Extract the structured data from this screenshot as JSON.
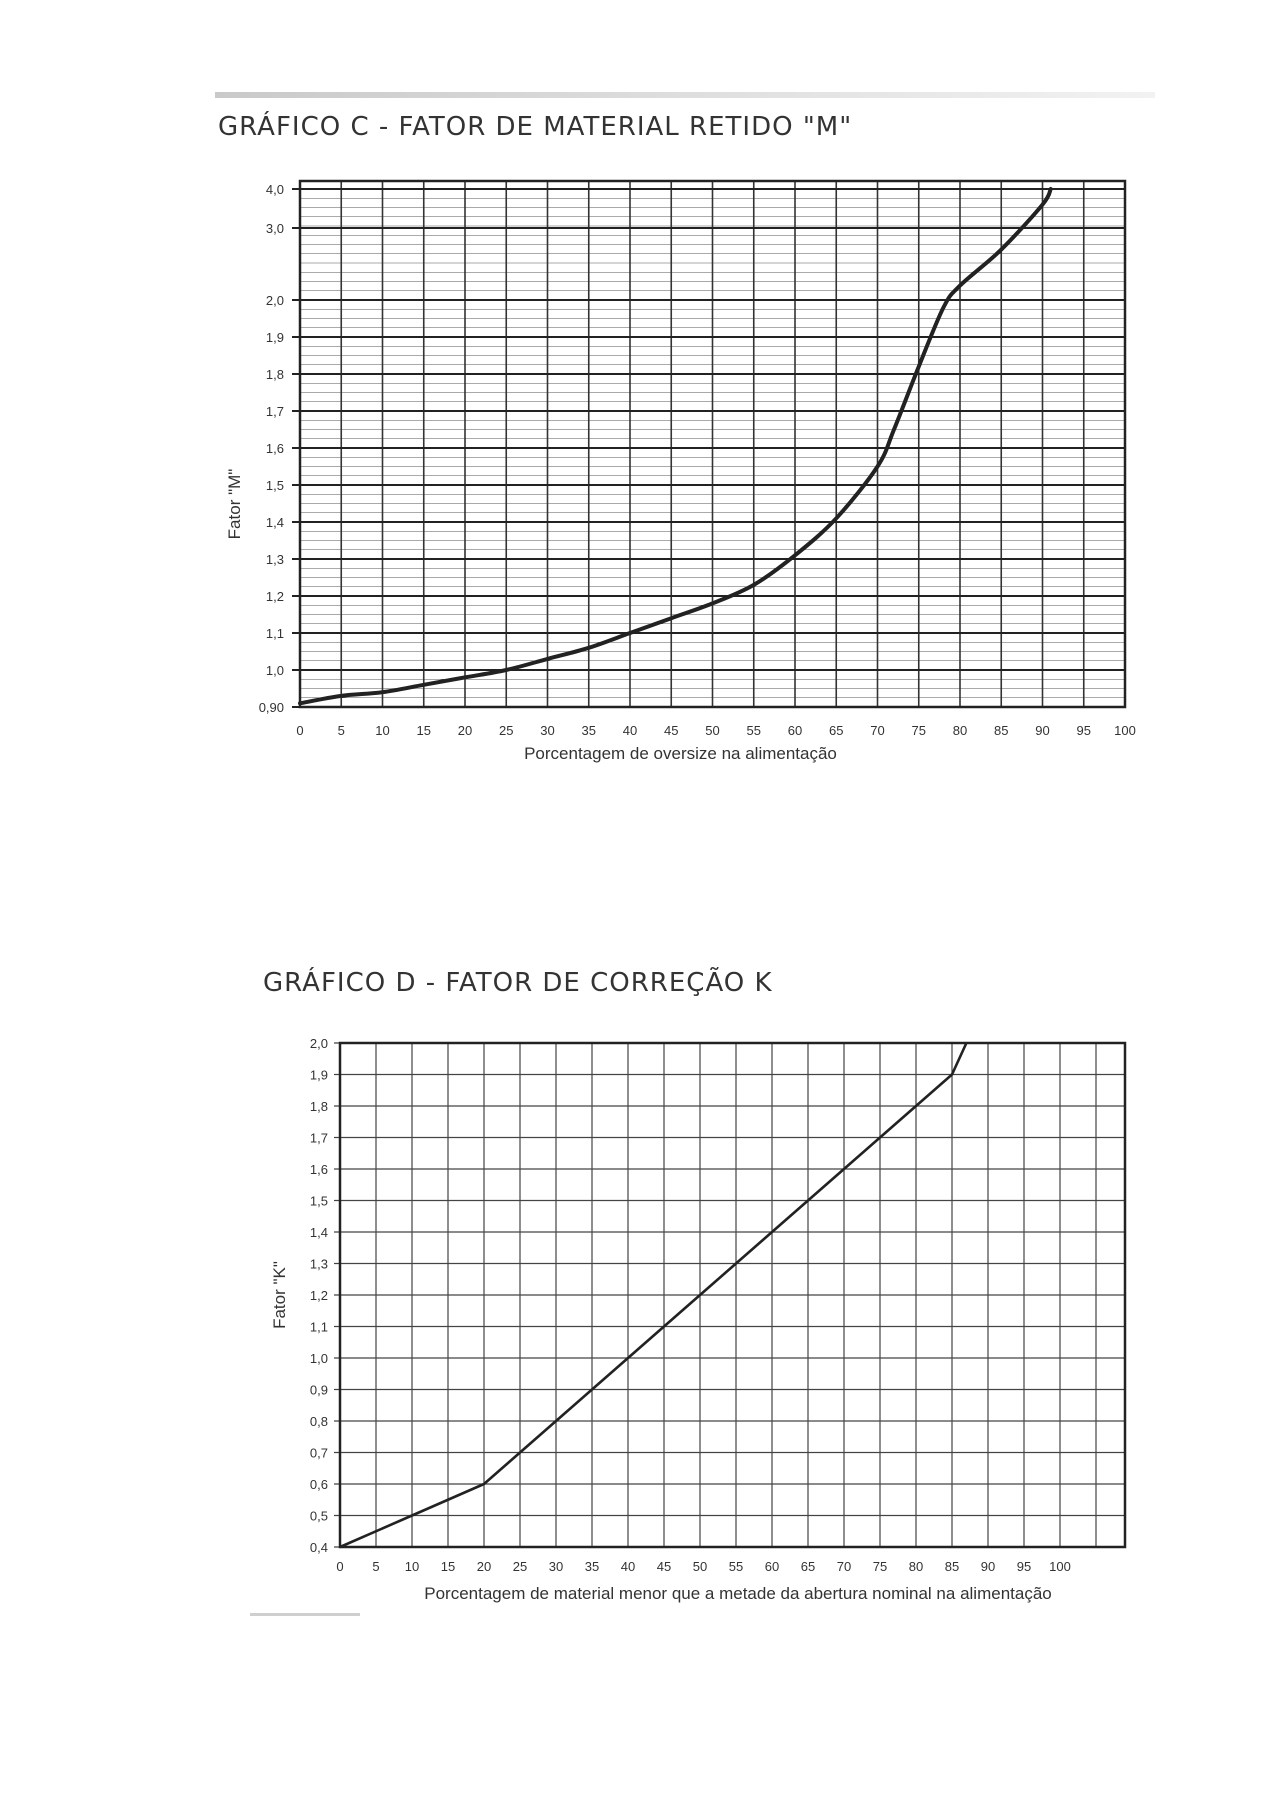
{
  "chart_data": [
    {
      "type": "line",
      "title": "GRÁFICO C -  FATOR DE MATERIAL RETIDO \"M\"",
      "xlabel": "Porcentagem de oversize na alimentação",
      "ylabel": "Fator \"M\"",
      "x_ticks": [
        "0",
        "5",
        "10",
        "15",
        "20",
        "25",
        "30",
        "35",
        "40",
        "45",
        "50",
        "55",
        "60",
        "65",
        "70",
        "75",
        "80",
        "85",
        "90",
        "95",
        "100"
      ],
      "y_ticks": [
        "0,90",
        "1,0",
        "1,1",
        "1,2",
        "1,3",
        "1,4",
        "1,5",
        "1,6",
        "1,7",
        "1,8",
        "1,9",
        "2,0",
        "3,0",
        "4,0"
      ],
      "xlim": [
        0,
        100
      ],
      "y_scale": "nonlinear (0,90–2,0 linear steps of 0,1; then 3,0 and 4,0)",
      "grid": true,
      "series": [
        {
          "x": [
            0,
            5,
            10,
            15,
            20,
            25,
            30,
            35,
            40,
            45,
            50,
            55,
            60,
            65,
            70,
            72,
            75,
            78,
            80,
            85,
            90,
            91
          ],
          "y": [
            0.91,
            0.93,
            0.94,
            0.96,
            0.98,
            1.0,
            1.03,
            1.06,
            1.1,
            1.14,
            1.18,
            1.23,
            1.31,
            1.41,
            1.55,
            1.65,
            1.82,
            1.98,
            2.2,
            2.7,
            3.6,
            4.0
          ]
        }
      ]
    },
    {
      "type": "line",
      "title": "GRÁFICO D -  FATOR DE CORREÇÃO K",
      "xlabel": "Porcentagem de material menor que a metade da abertura nominal na alimentação",
      "ylabel": "Fator \"K\"",
      "x_ticks": [
        "0",
        "5",
        "10",
        "15",
        "20",
        "25",
        "30",
        "35",
        "40",
        "45",
        "50",
        "55",
        "60",
        "65",
        "70",
        "75",
        "80",
        "85",
        "90",
        "95",
        "100"
      ],
      "y_ticks": [
        "0,4",
        "0,5",
        "0,6",
        "0,7",
        "0,8",
        "0,9",
        "1,0",
        "1,1",
        "1,2",
        "1,3",
        "1,4",
        "1,5",
        "1,6",
        "1,7",
        "1,8",
        "1,9",
        "2,0"
      ],
      "xlim": [
        0,
        100
      ],
      "ylim": [
        0.4,
        2.0
      ],
      "grid": true,
      "series": [
        {
          "x": [
            0,
            10,
            20,
            25,
            30,
            35,
            40,
            50,
            55,
            60,
            70,
            80,
            85,
            87
          ],
          "y": [
            0.4,
            0.5,
            0.6,
            0.7,
            0.8,
            0.9,
            1.0,
            1.2,
            1.3,
            1.4,
            1.6,
            1.8,
            1.9,
            2.0
          ]
        }
      ]
    }
  ]
}
